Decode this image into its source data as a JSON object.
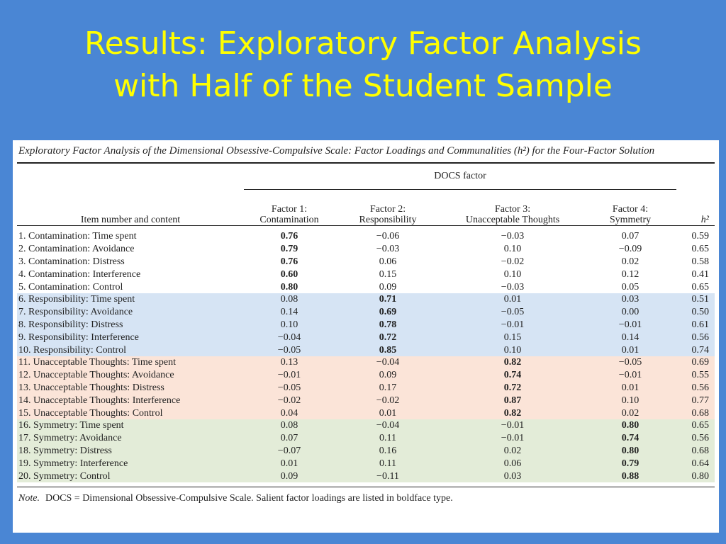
{
  "slide": {
    "title_line1": "Results: Exploratory Factor Analysis",
    "title_line2": "with Half of the Student Sample"
  },
  "table": {
    "caption": "Exploratory Factor Analysis of the Dimensional Obsessive-Compulsive Scale: Factor Loadings and Communalities (h²) for the Four-Factor Solution",
    "group_header": "DOCS factor",
    "columns": {
      "item": "Item number and content",
      "f1_line1": "Factor 1:",
      "f1_line2": "Contamination",
      "f2_line1": "Factor 2:",
      "f2_line2": "Responsibility",
      "f3_line1": "Factor 3:",
      "f3_line2": "Unacceptable Thoughts",
      "f4_line1": "Factor 4:",
      "f4_line2": "Symmetry",
      "h2": "h²"
    },
    "rows": [
      {
        "item": "1. Contamination: Time spent",
        "f1": "0.76",
        "f2": "−0.06",
        "f3": "−0.03",
        "f4": "0.07",
        "h2": "0.59"
      },
      {
        "item": "2. Contamination: Avoidance",
        "f1": "0.79",
        "f2": "−0.03",
        "f3": "0.10",
        "f4": "−0.09",
        "h2": "0.65"
      },
      {
        "item": "3. Contamination: Distress",
        "f1": "0.76",
        "f2": "0.06",
        "f3": "−0.02",
        "f4": "0.02",
        "h2": "0.58"
      },
      {
        "item": "4. Contamination: Interference",
        "f1": "0.60",
        "f2": "0.15",
        "f3": "0.10",
        "f4": "0.12",
        "h2": "0.41"
      },
      {
        "item": "5. Contamination: Control",
        "f1": "0.80",
        "f2": "0.09",
        "f3": "−0.03",
        "f4": "0.05",
        "h2": "0.65"
      },
      {
        "item": "6. Responsibility: Time spent",
        "f1": "0.08",
        "f2": "0.71",
        "f3": "0.01",
        "f4": "0.03",
        "h2": "0.51"
      },
      {
        "item": "7. Responsibility: Avoidance",
        "f1": "0.14",
        "f2": "0.69",
        "f3": "−0.05",
        "f4": "0.00",
        "h2": "0.50"
      },
      {
        "item": "8. Responsibility: Distress",
        "f1": "0.10",
        "f2": "0.78",
        "f3": "−0.01",
        "f4": "−0.01",
        "h2": "0.61"
      },
      {
        "item": "9. Responsibility: Interference",
        "f1": "−0.04",
        "f2": "0.72",
        "f3": "0.15",
        "f4": "0.14",
        "h2": "0.56"
      },
      {
        "item": "10. Responsibility: Control",
        "f1": "−0.05",
        "f2": "0.85",
        "f3": "0.10",
        "f4": "0.01",
        "h2": "0.74"
      },
      {
        "item": "11. Unacceptable Thoughts: Time spent",
        "f1": "0.13",
        "f2": "−0.04",
        "f3": "0.82",
        "f4": "−0.05",
        "h2": "0.69"
      },
      {
        "item": "12. Unacceptable Thoughts: Avoidance",
        "f1": "−0.01",
        "f2": "0.09",
        "f3": "0.74",
        "f4": "−0.01",
        "h2": "0.55"
      },
      {
        "item": "13. Unacceptable Thoughts: Distress",
        "f1": "−0.05",
        "f2": "0.17",
        "f3": "0.72",
        "f4": "0.01",
        "h2": "0.56"
      },
      {
        "item": "14. Unacceptable Thoughts: Interference",
        "f1": "−0.02",
        "f2": "−0.02",
        "f3": "0.87",
        "f4": "0.10",
        "h2": "0.77"
      },
      {
        "item": "15. Unacceptable Thoughts: Control",
        "f1": "0.04",
        "f2": "0.01",
        "f3": "0.82",
        "f4": "0.02",
        "h2": "0.68"
      },
      {
        "item": "16. Symmetry: Time spent",
        "f1": "0.08",
        "f2": "−0.04",
        "f3": "−0.01",
        "f4": "0.80",
        "h2": "0.65"
      },
      {
        "item": "17. Symmetry: Avoidance",
        "f1": "0.07",
        "f2": "0.11",
        "f3": "−0.01",
        "f4": "0.74",
        "h2": "0.56"
      },
      {
        "item": "18. Symmetry: Distress",
        "f1": "−0.07",
        "f2": "0.16",
        "f3": "0.02",
        "f4": "0.80",
        "h2": "0.68"
      },
      {
        "item": "19. Symmetry: Interference",
        "f1": "0.01",
        "f2": "0.11",
        "f3": "0.06",
        "f4": "0.79",
        "h2": "0.64"
      },
      {
        "item": "20. Symmetry: Control",
        "f1": "0.09",
        "f2": "−0.11",
        "f3": "0.03",
        "f4": "0.88",
        "h2": "0.80"
      }
    ],
    "note_label": "Note.",
    "note_text": "DOCS = Dimensional Obsessive-Compulsive Scale. Salient factor loadings are listed in boldface type."
  }
}
